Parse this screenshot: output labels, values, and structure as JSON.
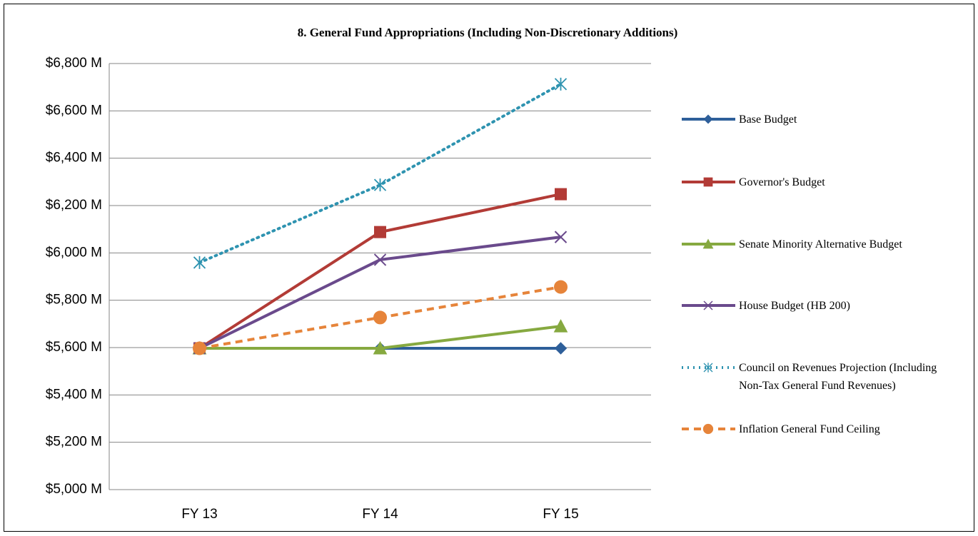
{
  "chart_data": {
    "type": "line",
    "title": "8. General Fund Appropriations (Including Non-Discretionary Additions)",
    "categories": [
      "FY 13",
      "FY 14",
      "FY 15"
    ],
    "ylim": [
      5000,
      6800
    ],
    "yticks": [
      {
        "value": 5000,
        "label": "$5,000 M"
      },
      {
        "value": 5200,
        "label": "$5,200 M"
      },
      {
        "value": 5400,
        "label": "$5,400 M"
      },
      {
        "value": 5600,
        "label": "$5,600 M"
      },
      {
        "value": 5800,
        "label": "$5,800 M"
      },
      {
        "value": 6000,
        "label": "$6,000 M"
      },
      {
        "value": 6200,
        "label": "$6,200 M"
      },
      {
        "value": 6400,
        "label": "$6,400 M"
      },
      {
        "value": 6600,
        "label": "$6,600 M"
      },
      {
        "value": 6800,
        "label": "$6,800 M"
      }
    ],
    "grid": true,
    "legend": "right",
    "series": [
      {
        "name": "Base Budget",
        "color": "#2e5f9a",
        "dash": "solid",
        "marker": "diamond",
        "values": [
          5597,
          5597,
          5597
        ]
      },
      {
        "name": "Governor's Budget",
        "color": "#b23b36",
        "dash": "solid",
        "marker": "square",
        "values": [
          5597,
          6088,
          6248
        ]
      },
      {
        "name": "Senate Minority Alternative Budget",
        "color": "#86a940",
        "dash": "solid",
        "marker": "triangle",
        "values": [
          5597,
          5597,
          5690
        ]
      },
      {
        "name": "House Budget (HB 200)",
        "color": "#6a4a8c",
        "dash": "solid",
        "marker": "x",
        "values": [
          5597,
          5971,
          6067
        ]
      },
      {
        "name": "Council on Revenues Projection (Including Non-Tax General Fund Revenues)",
        "color": "#2e93b0",
        "dash": "dotted",
        "marker": "asterisk",
        "values": [
          5959,
          6287,
          6713
        ]
      },
      {
        "name": "Inflation General Fund Ceiling",
        "color": "#e6843a",
        "dash": "dashed",
        "marker": "circle",
        "values": [
          5597,
          5727,
          5856
        ]
      }
    ]
  }
}
